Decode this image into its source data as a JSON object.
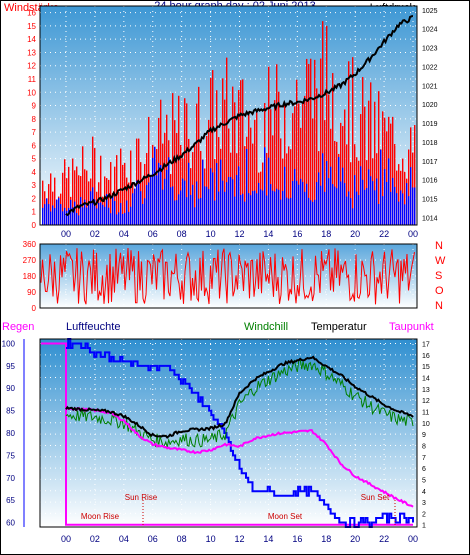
{
  "colors": {
    "wind": "#ff0000",
    "wind_low": "#0000ff",
    "pressure": "#000000",
    "temperature": "#000000",
    "windchill": "#008000",
    "humidity": "#0000ff",
    "dewpoint": "#ff00ff",
    "rain": "#ff00ff",
    "sun_label": "#cc0000",
    "plot_top": "#3d97d4",
    "plot_bottom": "#ffffff",
    "axis_text": "#000080"
  },
  "icons": [
    "none"
  ],
  "chart_data": [
    {
      "type": "bar",
      "title": "24 hour graph day : 02 Juni 2013",
      "left_label": "Windstärke",
      "right_label": "Luftdruck",
      "x_ticks": [
        "00",
        "02",
        "04",
        "06",
        "08",
        "10",
        "12",
        "14",
        "16",
        "18",
        "20",
        "22",
        "00"
      ],
      "y_left_ticks": [
        "0",
        "1",
        "2",
        "3",
        "4",
        "5",
        "6",
        "7",
        "8",
        "9",
        "10",
        "11",
        "12",
        "13",
        "14",
        "15",
        "16"
      ],
      "y_right_ticks": [
        "1014",
        "1015",
        "1016",
        "1017",
        "1018",
        "1019",
        "1020",
        "1021",
        "1022",
        "1023",
        "1024",
        "1025"
      ],
      "ylim_left": [
        0,
        16.5
      ],
      "ylim_right": [
        1013.6,
        1025.2
      ],
      "hours": [
        0,
        1,
        2,
        3,
        4,
        5,
        6,
        7,
        8,
        9,
        10,
        11,
        12,
        13,
        14,
        15,
        16,
        17,
        18,
        19,
        20,
        21,
        22,
        23,
        24
      ],
      "series": [
        {
          "name": "Windstärke",
          "axis": "left",
          "max_values": [
            5,
            6,
            7,
            5,
            7,
            8,
            9,
            10,
            10,
            11,
            12,
            13,
            12,
            11,
            12,
            13,
            14,
            15,
            16,
            15,
            12,
            11,
            10,
            9,
            8
          ],
          "base_values": [
            1,
            1,
            1,
            1,
            1,
            2,
            2,
            2,
            2,
            2,
            2,
            2,
            2,
            2,
            2,
            2,
            2,
            2,
            2,
            2,
            2,
            2,
            2,
            2,
            2
          ]
        },
        {
          "name": "Luftdruck",
          "axis": "right",
          "values": [
            1014.2,
            1014.6,
            1014.8,
            1015.1,
            1015.5,
            1015.9,
            1016.3,
            1016.8,
            1017.3,
            1017.9,
            1018.6,
            1019.0,
            1019.4,
            1019.6,
            1019.8,
            1020.0,
            1020.1,
            1020.3,
            1020.6,
            1021.0,
            1021.6,
            1022.4,
            1023.3,
            1024.2,
            1024.6
          ]
        }
      ]
    },
    {
      "type": "bar",
      "title": "",
      "direction_labels": [
        "N",
        "W",
        "S",
        "O",
        "N"
      ],
      "x_ticks": [
        "00",
        "02",
        "04",
        "06",
        "08",
        "10",
        "12",
        "14",
        "16",
        "18",
        "20",
        "22",
        "00"
      ],
      "y_left_ticks": [
        "0",
        "90",
        "180",
        "270",
        "360"
      ],
      "ylim_left": [
        0,
        360
      ],
      "hours": [
        0,
        2,
        4,
        6,
        8,
        10,
        12,
        14,
        16,
        18,
        20,
        22,
        24
      ],
      "series": [
        {
          "name": "Windrichtung",
          "axis": "left",
          "values": [
            220,
            240,
            200,
            260,
            230,
            210,
            250,
            220,
            240,
            230,
            210,
            250,
            230
          ],
          "range": [
            20,
            340
          ]
        }
      ]
    },
    {
      "type": "line",
      "title": "",
      "legend": [
        "Regen",
        "Luftfeuchte",
        "Windchill",
        "Temperatur",
        "Taupunkt"
      ],
      "x_ticks": [
        "00",
        "02",
        "04",
        "06",
        "08",
        "10",
        "12",
        "14",
        "16",
        "18",
        "20",
        "22",
        "00"
      ],
      "y_left_ticks": [
        "60",
        "65",
        "70",
        "75",
        "80",
        "85",
        "90",
        "95",
        "100"
      ],
      "y_right_ticks": [
        "1",
        "2",
        "3",
        "4",
        "5",
        "6",
        "7",
        "8",
        "9",
        "10",
        "11",
        "12",
        "13",
        "14",
        "15",
        "16",
        "17"
      ],
      "ylim_left": [
        59,
        101
      ],
      "ylim_right": [
        0.8,
        17.4
      ],
      "annotations": [
        "Sun Rise",
        "Sun Set",
        "Moon Rise",
        "Moon Set"
      ],
      "hours": [
        0,
        1,
        2,
        3,
        4,
        5,
        6,
        7,
        8,
        9,
        10,
        11,
        12,
        13,
        14,
        15,
        16,
        17,
        18,
        19,
        20,
        21,
        22,
        23,
        24
      ],
      "series": [
        {
          "name": "Temperatur",
          "axis": "right",
          "values": [
            11.3,
            11.2,
            11.1,
            11.0,
            10.6,
            9.8,
            8.9,
            8.8,
            9.3,
            9.4,
            9.5,
            9.9,
            12.6,
            13.8,
            14.5,
            15.2,
            15.5,
            15.8,
            15.0,
            14.2,
            13.2,
            12.4,
            11.6,
            11.0,
            10.6
          ]
        },
        {
          "name": "Windchill",
          "axis": "right",
          "values": [
            10.7,
            10.6,
            10.5,
            10.3,
            10.0,
            9.2,
            8.5,
            8.3,
            8.6,
            8.4,
            8.5,
            9.0,
            11.6,
            13.0,
            13.8,
            14.5,
            15.0,
            15.2,
            14.4,
            13.4,
            12.4,
            11.5,
            10.8,
            10.3,
            10.0
          ]
        },
        {
          "name": "Taupunkt",
          "axis": "right",
          "values": [
            11.3,
            11.2,
            11.1,
            10.9,
            10.2,
            8.9,
            8.1,
            7.8,
            7.6,
            7.4,
            7.6,
            8.1,
            7.9,
            8.6,
            8.9,
            9.1,
            9.2,
            9.3,
            8.1,
            6.4,
            5.3,
            4.6,
            3.9,
            3.2,
            2.6
          ]
        },
        {
          "name": "Luftfeuchte",
          "axis": "left",
          "values": [
            100,
            100,
            98,
            97,
            96,
            95,
            95,
            95,
            92,
            88,
            85,
            79,
            72,
            67,
            67,
            66,
            67,
            67,
            64,
            60,
            60,
            60,
            61,
            61,
            61
          ]
        },
        {
          "name": "Regen",
          "axis": "right",
          "values": [
            17,
            1,
            1,
            1,
            1,
            1,
            1,
            1,
            1,
            1,
            1,
            1,
            1,
            1,
            1,
            1,
            1,
            1,
            1,
            1,
            1,
            1,
            1,
            1,
            1
          ]
        }
      ]
    }
  ]
}
